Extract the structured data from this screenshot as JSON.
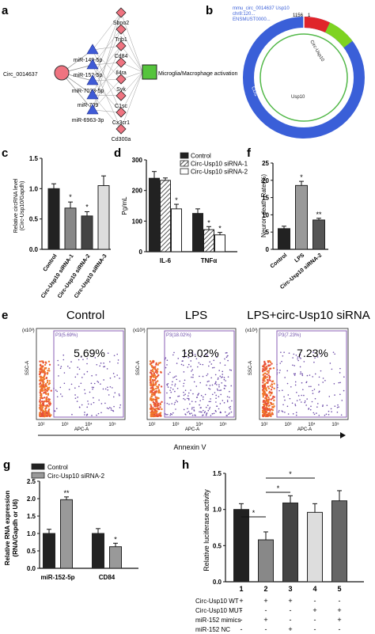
{
  "panels": {
    "a": {
      "letter": "a",
      "circ_node": "Circ_0014637",
      "mirnas": [
        "miR-149-5p",
        "miR-152-5p",
        "miR-7033-5p",
        "miR-709",
        "miR-6963-3p"
      ],
      "genes": [
        "Sbno2",
        "Trib1",
        "Cd84",
        "Il4ra",
        "Syk",
        "C1sc",
        "Cx3cr1",
        "Cd300a"
      ],
      "target": "Microglia/Macrophage activation"
    },
    "b": {
      "letter": "b",
      "header_lines": [
        "mmu_circ_0014637 Usp10",
        "chr8:120...",
        "ENSMUST0000..."
      ],
      "top_labels": [
        "1156",
        "1"
      ],
      "arc_labels": [
        "Circ-Usp10",
        "Usp10",
        "CDS"
      ],
      "colors": {
        "ring": "#3a5fd8",
        "red_segment": "#e0242a",
        "green_segment": "#7ed321",
        "inner": "#52b848"
      }
    },
    "c": {
      "letter": "c",
      "ylabel_lines": [
        "Relative circRNA level",
        "(Circ-Usp10/Gapdh)"
      ],
      "significance": [
        "*",
        "*"
      ]
    },
    "d": {
      "letter": "d",
      "ylabel": "Pg/mL",
      "legend": [
        "Control",
        "Circ-Usp10 siRNA-1",
        "Circ-Usp10 siRNA-2"
      ],
      "significance": [
        "*",
        "*",
        "*"
      ]
    },
    "f": {
      "letter": "f",
      "ylabel": "Neuron death Rate(%)",
      "significance": [
        "*",
        "**"
      ]
    },
    "e": {
      "letter": "e",
      "titles": [
        "Control",
        "LPS",
        "LPS+circ-Usp10 siRNA"
      ],
      "gate_labels": [
        "P3(5.69%)",
        "P3(18.02%)",
        "P3(7.23%)"
      ],
      "percents": [
        "5.69%",
        "18.02%",
        "7.23%"
      ],
      "y_axis_label": "SSC-A",
      "x_axis_label": "APC-A",
      "scale_label": "(x10³)",
      "x_ticks": [
        "10²",
        "10³",
        "10⁴",
        "10⁵"
      ],
      "annexin": "Annexin V"
    },
    "g": {
      "letter": "g",
      "ylabel_lines": [
        "Relative RNA expression",
        "(RNA/Gapdh or U6)"
      ],
      "legend": [
        "Control",
        "Circ-Usp10 siRNA-2"
      ],
      "significance": [
        "**",
        "*"
      ]
    },
    "h": {
      "letter": "h",
      "ylabel": "Relative luciferase activity",
      "significance": [
        "*",
        "*",
        "*"
      ],
      "table_labels": [
        "Circ-Usp10 WT",
        "Circ-Usp10 MUT",
        "miR-152 mimics",
        "miR-152 NC"
      ],
      "table_rows": [
        [
          "+",
          "+",
          "+",
          "-",
          "-"
        ],
        [
          "-",
          "-",
          "-",
          "+",
          "+"
        ],
        [
          "-",
          "+",
          "-",
          "-",
          "+"
        ],
        [
          "-",
          "-",
          "+",
          "-",
          "-"
        ]
      ]
    }
  },
  "chart_data": [
    {
      "panel": "c",
      "type": "bar",
      "categories": [
        "Control",
        "Circ-Usp10 siRNA-1",
        "Circ-Usp10 siRNA-2",
        "Circ-Usp10 siRNA-3"
      ],
      "values": [
        1.0,
        0.68,
        0.55,
        1.05
      ],
      "errors": [
        0.08,
        0.1,
        0.07,
        0.16
      ],
      "ylim": [
        0,
        1.5
      ],
      "yticks": [
        "0.0",
        "0.5",
        "1.0",
        "1.5"
      ]
    },
    {
      "panel": "d",
      "type": "bar",
      "categories": [
        "IL-6",
        "TNFα"
      ],
      "series": [
        {
          "name": "Control",
          "values": [
            240,
            125
          ],
          "errors": [
            22,
            15
          ]
        },
        {
          "name": "Circ-Usp10 siRNA-1",
          "values": [
            233,
            72
          ],
          "errors": [
            8,
            10
          ]
        },
        {
          "name": "Circ-Usp10 siRNA-2",
          "values": [
            140,
            55
          ],
          "errors": [
            15,
            8
          ]
        }
      ],
      "ylim": [
        0,
        300
      ],
      "yticks": [
        "0",
        "100",
        "200",
        "300"
      ]
    },
    {
      "panel": "f",
      "type": "bar",
      "categories": [
        "Control",
        "LPS",
        "Circ-Usp10 siRNA-2"
      ],
      "values": [
        6,
        18.5,
        8.5
      ],
      "errors": [
        0.7,
        1.2,
        0.5
      ],
      "ylim": [
        0,
        25
      ],
      "yticks": [
        "0",
        "5",
        "10",
        "15",
        "20",
        "25"
      ]
    },
    {
      "panel": "g",
      "type": "bar",
      "categories": [
        "miR-152-5p",
        "CD84"
      ],
      "series": [
        {
          "name": "Control",
          "values": [
            1.0,
            1.0
          ],
          "errors": [
            0.12,
            0.14
          ]
        },
        {
          "name": "Circ-Usp10 siRNA-2",
          "values": [
            1.97,
            0.62
          ],
          "errors": [
            0.08,
            0.1
          ]
        }
      ],
      "ylim": [
        0,
        2.5
      ],
      "yticks": [
        "0.0",
        "0.5",
        "1.0",
        "1.5",
        "2.0",
        "2.5"
      ]
    },
    {
      "panel": "h",
      "type": "bar",
      "categories": [
        "1",
        "2",
        "3",
        "4",
        "5"
      ],
      "values": [
        1.0,
        0.58,
        1.09,
        0.96,
        1.12
      ],
      "errors": [
        0.08,
        0.11,
        0.1,
        0.12,
        0.14
      ],
      "ylim": [
        0,
        1.5
      ],
      "yticks": [
        "0.0",
        "0.5",
        "1.0",
        "1.5"
      ]
    }
  ]
}
